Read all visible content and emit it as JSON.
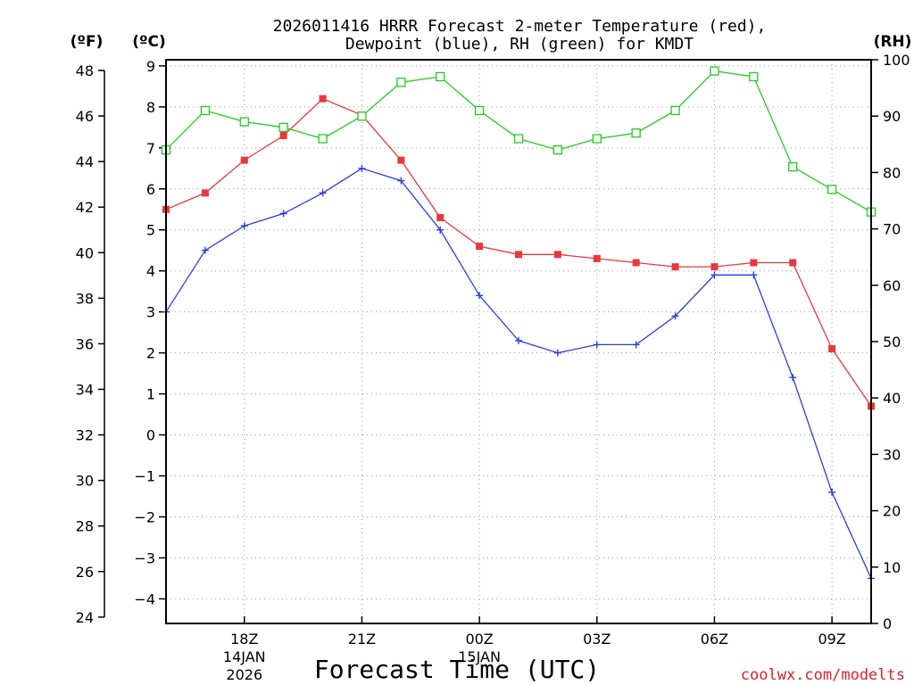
{
  "chart_data": {
    "type": "line",
    "title_lines": [
      "2026011416 HRRR Forecast 2-meter Temperature (red),",
      "Dewpoint (blue), RH (green) for KMDT"
    ],
    "xlabel": "Forecast Time (UTC)",
    "units": {
      "fahrenheit": "(ºF)",
      "celsius": "(ºC)",
      "rh": "(RH)"
    },
    "x_ticks": [
      {
        "x": 2,
        "label": "18Z",
        "date_lines": [
          "14JAN",
          "2026"
        ]
      },
      {
        "x": 5,
        "label": "21Z",
        "date_lines": []
      },
      {
        "x": 8,
        "label": "00Z",
        "date_lines": [
          "15JAN"
        ]
      },
      {
        "x": 11,
        "label": "03Z",
        "date_lines": []
      },
      {
        "x": 14,
        "label": "06Z",
        "date_lines": []
      },
      {
        "x": 17,
        "label": "09Z",
        "date_lines": []
      }
    ],
    "xlim": [
      0,
      18
    ],
    "celsius_axis": {
      "ylim": [
        -4.6,
        9.15
      ],
      "ticks": [
        "-4",
        "-3",
        "-2",
        "-1",
        "0",
        "1",
        "2",
        "3",
        "4",
        "5",
        "6",
        "7",
        "8",
        "9"
      ]
    },
    "fahrenheit_axis": {
      "ylim": [
        23.72,
        48.47
      ],
      "ticks": [
        "24",
        "26",
        "28",
        "30",
        "32",
        "34",
        "36",
        "38",
        "40",
        "42",
        "44",
        "46",
        "48"
      ]
    },
    "rh_axis": {
      "ylim": [
        0,
        100
      ],
      "ticks": [
        "0",
        "10",
        "20",
        "30",
        "40",
        "50",
        "60",
        "70",
        "80",
        "90",
        "100"
      ]
    },
    "series": [
      {
        "name": "Temperature",
        "axis": "celsius",
        "color": "#e8383d",
        "marker": "filled-square",
        "x": [
          0,
          1,
          2,
          3,
          4,
          5,
          6,
          7,
          8,
          9,
          10,
          11,
          12,
          13,
          14,
          15,
          16,
          17,
          18
        ],
        "values": [
          5.5,
          5.9,
          6.7,
          7.3,
          8.2,
          7.8,
          6.7,
          5.3,
          4.6,
          4.4,
          4.4,
          4.3,
          4.2,
          4.1,
          4.1,
          4.2,
          4.2,
          2.1,
          0.7
        ]
      },
      {
        "name": "Dewpoint",
        "axis": "celsius",
        "color": "#2a3fe0",
        "marker": "plus",
        "x": [
          0,
          1,
          2,
          3,
          4,
          5,
          6,
          7,
          8,
          9,
          10,
          11,
          12,
          13,
          14,
          15,
          16,
          17,
          18
        ],
        "values": [
          3.0,
          4.5,
          5.1,
          5.4,
          5.9,
          6.5,
          6.2,
          5.0,
          3.4,
          2.3,
          2.0,
          2.2,
          2.2,
          2.9,
          3.9,
          3.9,
          1.4,
          -1.4,
          -3.5
        ]
      },
      {
        "name": "RH",
        "axis": "rh",
        "color": "#22cc22",
        "marker": "open-square",
        "x": [
          0,
          1,
          2,
          3,
          4,
          5,
          6,
          7,
          8,
          9,
          10,
          11,
          12,
          13,
          14,
          15,
          16,
          17,
          18
        ],
        "values": [
          84,
          91,
          89,
          88,
          86,
          90,
          96,
          97,
          91,
          86,
          84,
          86,
          87,
          91,
          98,
          97,
          81,
          77,
          73
        ]
      }
    ]
  },
  "credit": "coolwx.com/modelts"
}
